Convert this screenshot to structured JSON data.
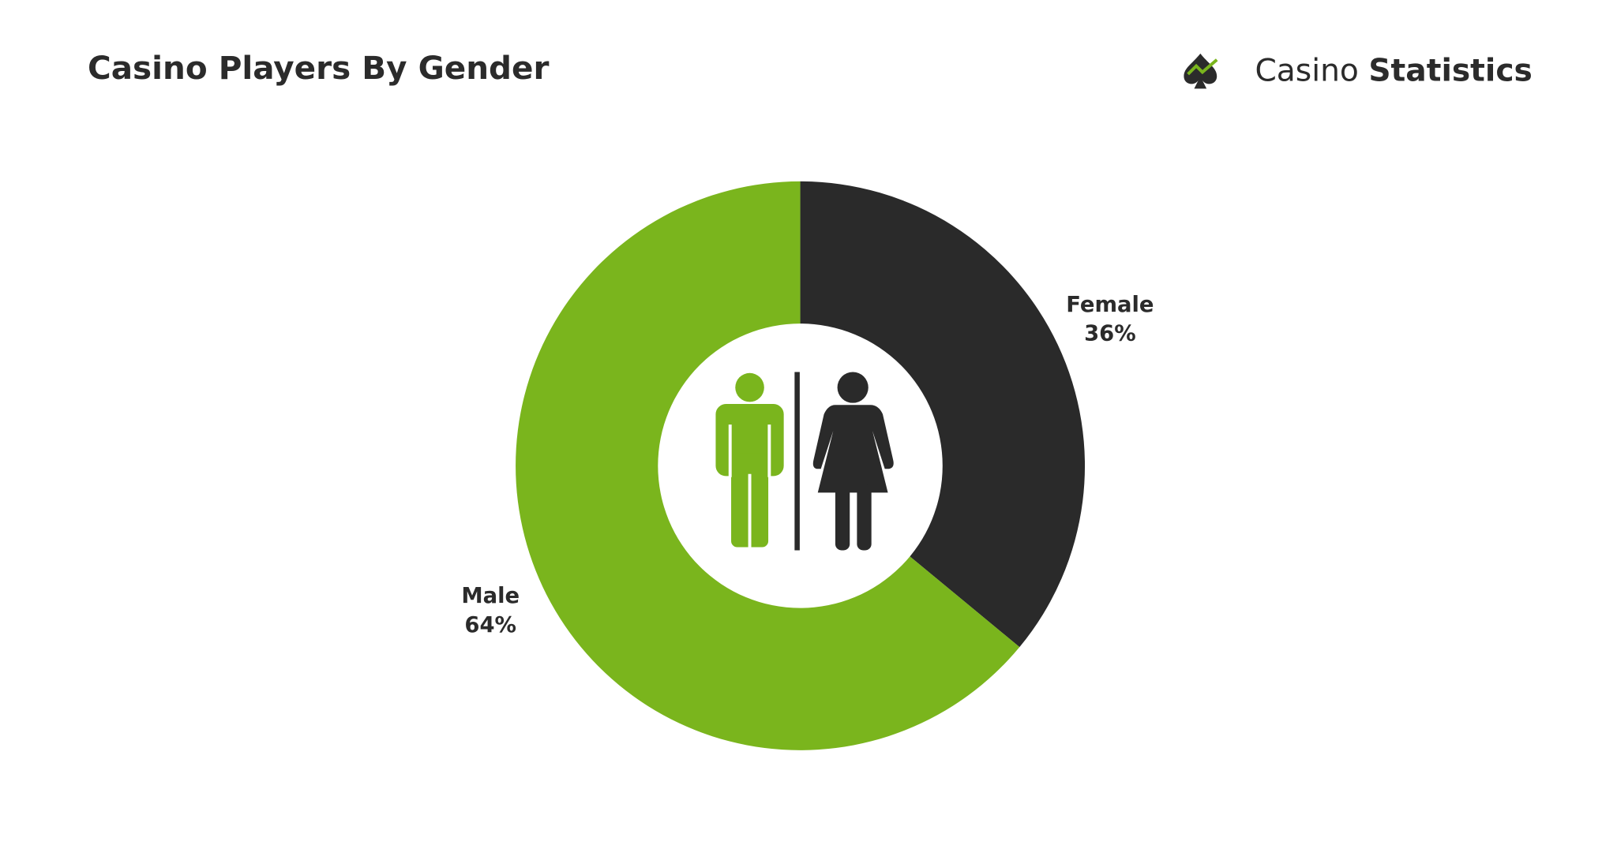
{
  "chart_data": {
    "type": "pie",
    "title": "Casino Players By Gender",
    "categories": [
      "Female",
      "Male"
    ],
    "values": [
      36,
      64
    ],
    "value_labels": [
      "36%",
      "64%"
    ],
    "colors": [
      "#2a2a2a",
      "#7ab51d"
    ]
  },
  "logo": {
    "light": "Casino",
    "bold": "Statistics"
  }
}
